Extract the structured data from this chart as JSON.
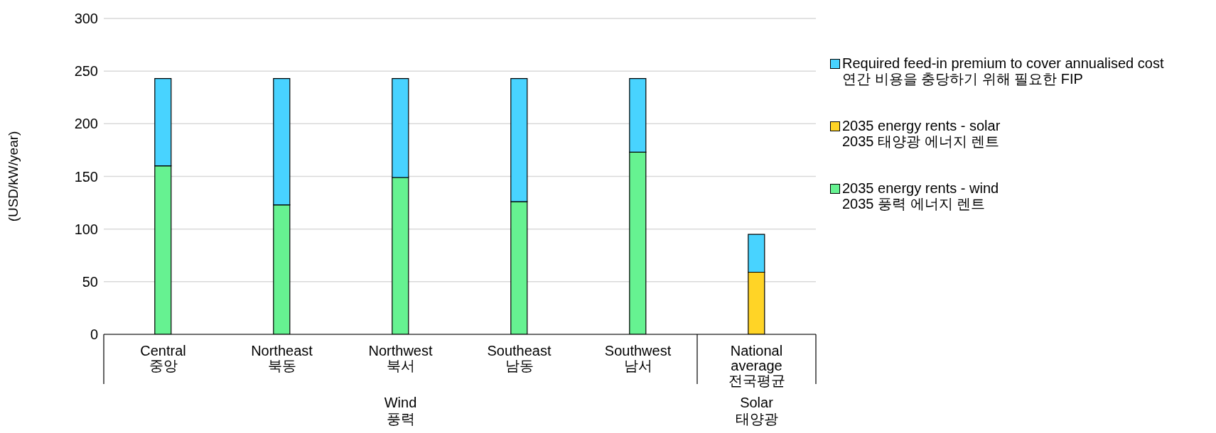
{
  "chart_data": {
    "type": "bar",
    "stacked": true,
    "ylabel": "(USD/kW/year)",
    "categories": [
      "Central\n중앙",
      "Northeast\n북동",
      "Northwest\n북서",
      "Southeast\n남동",
      "Southwest\n남서",
      "National\naverage\n전국평균"
    ],
    "series": [
      {
        "name": "2035 energy rents - wind\n2035 풍력 에너지 렌트",
        "color": "#66f291",
        "values": [
          160,
          123,
          149,
          126,
          173,
          null
        ]
      },
      {
        "name": "2035 energy rents - solar\n2035 태양광 에너지 렌트",
        "color": "#ffd426",
        "values": [
          null,
          null,
          null,
          null,
          null,
          59
        ]
      },
      {
        "name": "Required feed-in premium to cover annualised cost\n연간 비용을 충당하기 위해 필요한 FIP",
        "color": "#48d3ff",
        "values": [
          83,
          120,
          94,
          117,
          70,
          36
        ]
      }
    ],
    "annotations": [
      "Wind\n풍력",
      "Solar\n태양광"
    ],
    "ylim": [
      0,
      300
    ],
    "yticks": [
      0,
      50,
      100,
      150,
      200,
      250,
      300
    ],
    "grid": "y",
    "legend": "right"
  }
}
